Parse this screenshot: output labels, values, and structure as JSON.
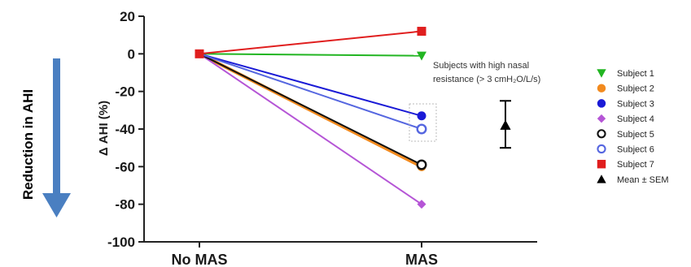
{
  "side_label": "Reduction in AHI",
  "annotation": {
    "line1": "Subjects with high nasal",
    "line2": "resistance (> 3 cmH₂O/L/s)"
  },
  "chart_data": {
    "type": "line",
    "categories": [
      "No MAS",
      "MAS"
    ],
    "xlabel": "",
    "ylabel": "Δ AHI (%)",
    "ylim": [
      -100,
      20
    ],
    "yticks": [
      20,
      0,
      -20,
      -40,
      -60,
      -80,
      -100
    ],
    "grid": false,
    "legend_position": "right",
    "series": [
      {
        "name": "Subject 1",
        "values": [
          0,
          -1
        ],
        "color": "#22b522",
        "marker": "triangle-down"
      },
      {
        "name": "Subject 2",
        "values": [
          0,
          -60
        ],
        "color": "#f28a1e",
        "marker": "circle"
      },
      {
        "name": "Subject 3",
        "values": [
          0,
          -33
        ],
        "color": "#1a1ad6",
        "marker": "circle"
      },
      {
        "name": "Subject 4",
        "values": [
          0,
          -80
        ],
        "color": "#b555d6",
        "marker": "diamond"
      },
      {
        "name": "Subject 5",
        "values": [
          0,
          -59
        ],
        "color": "#111111",
        "marker": "circle-open"
      },
      {
        "name": "Subject 6",
        "values": [
          0,
          -40
        ],
        "color": "#5566e0",
        "marker": "circle-open"
      },
      {
        "name": "Subject 7",
        "values": [
          0,
          12
        ],
        "color": "#e01e1e",
        "marker": "square"
      }
    ],
    "summary": {
      "name": "Mean ± SEM",
      "mean": -38,
      "lower": -50,
      "upper": -25,
      "color": "#000000",
      "marker": "triangle-up"
    }
  }
}
